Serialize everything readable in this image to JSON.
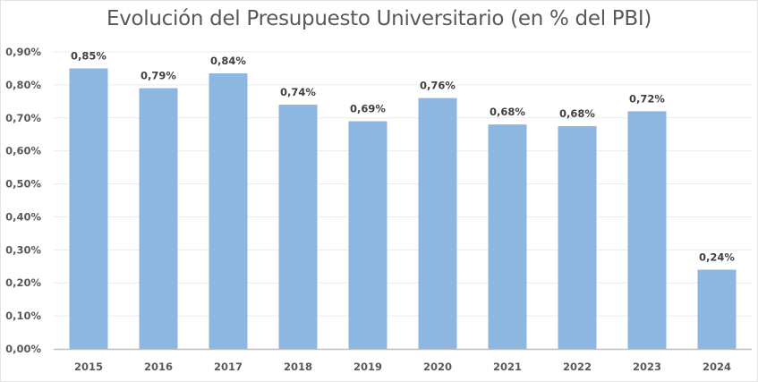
{
  "chart_data": {
    "type": "bar",
    "title": "Evolución del Presupuesto Universitario (en % del PBI)",
    "xlabel": "",
    "ylabel": "",
    "categories": [
      "2015",
      "2016",
      "2017",
      "2018",
      "2019",
      "2020",
      "2021",
      "2022",
      "2023",
      "2024"
    ],
    "values": [
      0.85,
      0.79,
      0.835,
      0.74,
      0.69,
      0.76,
      0.68,
      0.675,
      0.72,
      0.24
    ],
    "data_labels": [
      "0,85%",
      "0,79%",
      "0,84%",
      "0,74%",
      "0,69%",
      "0,76%",
      "0,68%",
      "0,68%",
      "0,72%",
      "0,24%"
    ],
    "ylim": [
      0,
      0.9
    ],
    "yticks": [
      0,
      0.1,
      0.2,
      0.3,
      0.4,
      0.5,
      0.6,
      0.7,
      0.8,
      0.9
    ],
    "ytick_labels": [
      "0,00%",
      "0,10%",
      "0,20%",
      "0,30%",
      "0,40%",
      "0,50%",
      "0,60%",
      "0,70%",
      "0,80%",
      "0,90%"
    ],
    "grid": true,
    "legend": "none",
    "bar_color": "#8db6e0",
    "gridline_color": "#ececec",
    "axis_color": "#bfbfbf"
  }
}
